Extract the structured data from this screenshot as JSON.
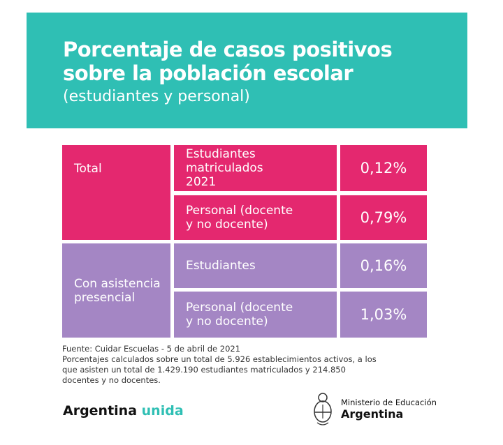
{
  "header": {
    "title_line1": "Porcentaje de casos positivos",
    "title_line2": "sobre la población escolar",
    "subtitle": "(estudiantes y personal)"
  },
  "table": {
    "groups": [
      {
        "label": "Total",
        "color": "#e4286f",
        "rows": [
          {
            "label": "Estudiantes matriculados 2021",
            "value": "0,12%"
          },
          {
            "label": "Personal (docente y no docente)",
            "value": "0,79%"
          }
        ]
      },
      {
        "label": "Con asistencia presencial",
        "color": "#a486c4",
        "rows": [
          {
            "label": "Estudiantes",
            "value": "0,16%"
          },
          {
            "label": "Personal (docente y no docente)",
            "value": "1,03%"
          }
        ]
      }
    ]
  },
  "footer": {
    "source": "Fuente: Cuidar Escuelas - 5 de abril de 2021",
    "note": "Porcentajes calculados sobre un total de 5.926 establecimientos activos, a los que asisten un total de 1.429.190 estudiantes matriculados y 214.850 docentes y no docentes."
  },
  "brand": {
    "part1": "Argentina",
    "part2": "unida"
  },
  "ministry": {
    "line1": "Ministerio de Educación",
    "line2": "Argentina",
    "icon": "coat-of-arms-icon"
  }
}
